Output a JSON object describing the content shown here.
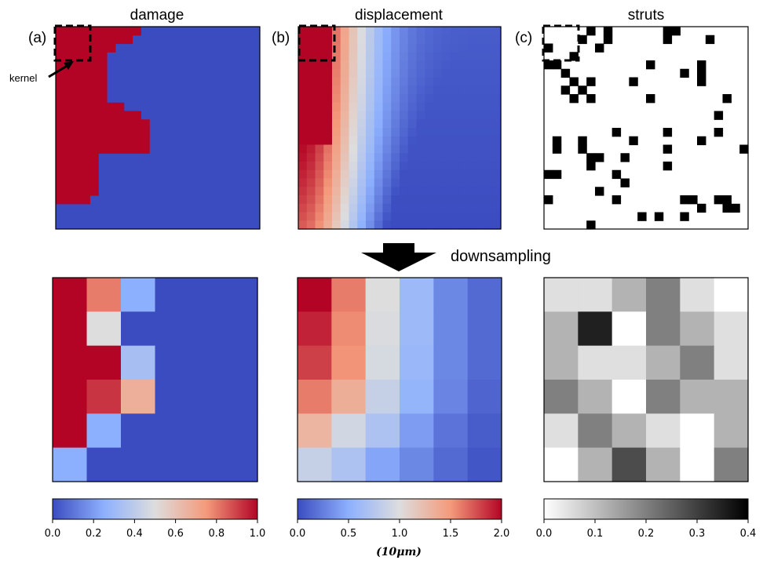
{
  "titles": {
    "damage": "damage",
    "displacement": "displacement",
    "struts": "struts"
  },
  "panel_labels": {
    "a": "(a)",
    "b": "(b)",
    "c": "(c)"
  },
  "annotation": {
    "kernel": "kernel"
  },
  "downsampling_label": "downsampling",
  "colors": {
    "coolwarm_low": "#3b4cc0",
    "coolwarm_mid": "#dddddd",
    "coolwarm_high": "#b40426",
    "struts_black": "#000000",
    "frame": "#000000"
  },
  "chart_data": {
    "type": "heatmap",
    "damage_full": {
      "grid": 24,
      "cmap": "coolwarm",
      "range": [
        0,
        1
      ],
      "red_extent_per_row": [
        10,
        9,
        7,
        6,
        6,
        6,
        6,
        6,
        6,
        8,
        10,
        11,
        11,
        11,
        11,
        5,
        5,
        5,
        5,
        5,
        4,
        0,
        0,
        0
      ]
    },
    "displacement_full": {
      "grid": 24,
      "cmap": "coolwarm",
      "range": [
        0,
        2
      ]
    },
    "struts_full": {
      "grid": 24,
      "cells": [
        [
          0,
          2
        ],
        [
          0,
          4
        ],
        [
          1,
          4
        ],
        [
          0,
          17
        ],
        [
          1,
          17
        ],
        [
          0,
          20
        ],
        [
          1,
          13
        ],
        [
          1,
          14
        ],
        [
          3,
          6
        ],
        [
          3,
          3
        ],
        [
          2,
          5
        ],
        [
          2,
          7
        ],
        [
          3,
          8
        ],
        [
          4,
          7
        ],
        [
          4,
          13
        ],
        [
          4,
          14
        ],
        [
          5,
          0
        ],
        [
          4,
          1
        ],
        [
          5,
          6
        ],
        [
          5,
          8
        ],
        [
          5,
          15
        ],
        [
          5,
          16
        ],
        [
          5,
          23
        ],
        [
          6,
          2
        ],
        [
          6,
          15
        ],
        [
          6,
          19
        ],
        [
          7,
          0
        ],
        [
          7,
          1
        ],
        [
          8,
          12
        ],
        [
          8,
          17
        ],
        [
          8,
          20
        ],
        [
          9,
          15
        ],
        [
          9,
          18
        ],
        [
          10,
          6
        ],
        [
          10,
          13
        ],
        [
          11,
          22
        ],
        [
          12,
          4
        ],
        [
          12,
          8
        ],
        [
          13,
          22
        ],
        [
          14,
          0
        ],
        [
          14,
          1
        ],
        [
          14,
          12
        ],
        [
          14,
          14
        ],
        [
          14,
          16
        ],
        [
          15,
          0
        ],
        [
          16,
          5
        ],
        [
          16,
          20
        ],
        [
          17,
          20
        ],
        [
          16,
          22
        ],
        [
          18,
          4
        ],
        [
          18,
          5
        ],
        [
          18,
          6
        ],
        [
          18,
          13
        ],
        [
          18,
          21
        ],
        [
          19,
          1
        ],
        [
          20,
          10
        ],
        [
          20,
          12
        ],
        [
          20,
          20
        ],
        [
          21,
          8
        ],
        [
          21,
          20
        ],
        [
          21,
          21
        ],
        [
          22,
          21
        ],
        [
          23,
          14
        ],
        [
          24,
          19
        ],
        [
          24,
          20
        ],
        [
          25,
          7
        ],
        [
          25,
          11
        ],
        [
          25,
          12
        ],
        [
          25,
          20
        ],
        [
          26,
          8
        ],
        [
          26,
          18
        ],
        [
          26,
          22
        ],
        [
          27,
          17
        ],
        [
          27,
          20
        ]
      ]
    },
    "damage_down": {
      "grid": 6,
      "cmap": "coolwarm",
      "range": [
        0,
        1
      ],
      "values": [
        [
          1.0,
          0.8,
          0.25,
          0.0,
          0.0,
          0.0
        ],
        [
          1.0,
          0.5,
          0.0,
          0.0,
          0.0,
          0.0
        ],
        [
          1.0,
          1.0,
          0.33,
          0.0,
          0.0,
          0.0
        ],
        [
          1.0,
          0.92,
          0.67,
          0.0,
          0.0,
          0.0
        ],
        [
          1.0,
          0.25,
          0.0,
          0.0,
          0.0,
          0.0
        ],
        [
          0.25,
          0.0,
          0.0,
          0.0,
          0.0,
          0.0
        ]
      ]
    },
    "displacement_down": {
      "grid": 6,
      "cmap": "coolwarm",
      "range": [
        0,
        2
      ],
      "values": [
        [
          2.0,
          1.6,
          1.0,
          0.6,
          0.3,
          0.15
        ],
        [
          1.9,
          1.55,
          0.98,
          0.6,
          0.3,
          0.15
        ],
        [
          1.8,
          1.52,
          0.95,
          0.58,
          0.3,
          0.15
        ],
        [
          1.6,
          1.35,
          0.85,
          0.55,
          0.28,
          0.12
        ],
        [
          1.3,
          0.92,
          0.7,
          0.4,
          0.2,
          0.08
        ],
        [
          0.85,
          0.7,
          0.45,
          0.3,
          0.15,
          0.05
        ]
      ]
    },
    "struts_down": {
      "grid": 6,
      "cmap": "gray_r",
      "range": [
        0,
        0.4
      ],
      "values": [
        [
          0.05,
          0.05,
          0.12,
          0.2,
          0.05,
          0.0
        ],
        [
          0.12,
          0.35,
          0.0,
          0.2,
          0.12,
          0.05
        ],
        [
          0.12,
          0.05,
          0.05,
          0.12,
          0.2,
          0.05
        ],
        [
          0.2,
          0.12,
          0.0,
          0.2,
          0.12,
          0.12
        ],
        [
          0.05,
          0.2,
          0.12,
          0.05,
          0.0,
          0.12
        ],
        [
          0.0,
          0.12,
          0.28,
          0.12,
          0.0,
          0.2
        ]
      ]
    },
    "colorbars": [
      {
        "name": "damage",
        "cmap": "coolwarm",
        "range": [
          0,
          1
        ],
        "ticks": [
          "0.0",
          "0.2",
          "0.4",
          "0.6",
          "0.8",
          "1.0"
        ]
      },
      {
        "name": "displacement",
        "cmap": "coolwarm",
        "range": [
          0,
          2
        ],
        "ticks": [
          "0.0",
          "0.5",
          "1.0",
          "1.5",
          "2.0"
        ],
        "unit": "(10μm)"
      },
      {
        "name": "struts",
        "cmap": "gray_r",
        "range": [
          0,
          0.4
        ],
        "ticks": [
          "0.0",
          "0.1",
          "0.2",
          "0.3",
          "0.4"
        ]
      }
    ]
  }
}
